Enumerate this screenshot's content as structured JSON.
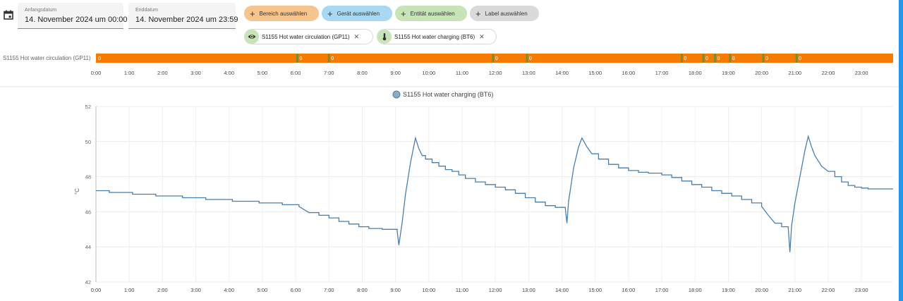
{
  "date_range": {
    "start_label": "Anfangsdatum",
    "start_value": "14. November 2024 um 00:00",
    "end_label": "Enddatum",
    "end_value": "14. November 2024 um 23:59"
  },
  "target_chips": {
    "area": "Bereich auswählen",
    "device": "Gerät auswählen",
    "entity": "Entität auswählen",
    "label": "Label auswählen"
  },
  "selected_entities": {
    "circulation": "S1155 Hot water circulation (GP11)",
    "charging": "S1155 Hot water charging (BT6)"
  },
  "colors": {
    "timeline_state": "#f57c00",
    "timeline_divider": "#7e8b2e",
    "line": "#4a7fad",
    "accent": "#2196f3"
  },
  "timeline": {
    "entity_label": "S1155 Hot water circulation (GP11)",
    "state_value": "0",
    "state_change_hours": [
      6.05,
      7.0,
      11.93,
      12.95,
      17.6,
      18.25,
      18.6,
      19.05,
      20.05,
      21.05
    ]
  },
  "x_ticks": [
    "0:00",
    "1:00",
    "2:00",
    "3:00",
    "4:00",
    "5:00",
    "6:00",
    "7:00",
    "8:00",
    "9:00",
    "10:00",
    "11:00",
    "12:00",
    "13:00",
    "14:00",
    "15:00",
    "16:00",
    "17:00",
    "18:00",
    "19:00",
    "20:00",
    "21:00",
    "22:00",
    "23:00"
  ],
  "chart_data": {
    "type": "line",
    "legend": "S1155 Hot water charging (BT6)",
    "ylabel": "°C",
    "ylim": [
      42,
      52
    ],
    "yticks": [
      "42",
      "44",
      "46",
      "48",
      "50",
      "52"
    ],
    "xlim": [
      0,
      23.95
    ],
    "series": [
      {
        "name": "S1155 Hot water charging (BT6)",
        "x": [
          0,
          0.4,
          1.1,
          1.8,
          2.6,
          3.3,
          4.1,
          4.9,
          5.6,
          6.1,
          6.4,
          6.7,
          7.0,
          7.3,
          7.6,
          7.9,
          8.2,
          8.6,
          9.0,
          9.05,
          9.1,
          9.2,
          9.3,
          9.45,
          9.6,
          9.7,
          9.8,
          9.9,
          10.1,
          10.3,
          10.5,
          10.7,
          10.9,
          11.1,
          11.4,
          11.7,
          12.0,
          12.3,
          12.6,
          12.9,
          13.2,
          13.5,
          13.8,
          14.1,
          14.15,
          14.2,
          14.35,
          14.5,
          14.6,
          14.75,
          14.9,
          15.1,
          15.4,
          15.7,
          16.0,
          16.3,
          16.6,
          17.0,
          17.3,
          17.6,
          17.9,
          18.2,
          18.5,
          18.8,
          19.1,
          19.4,
          19.7,
          20.0,
          20.2,
          20.4,
          20.6,
          20.8,
          20.85,
          20.9,
          21.0,
          21.15,
          21.3,
          21.4,
          21.5,
          21.6,
          21.8,
          22.0,
          22.2,
          22.4,
          22.6,
          22.8,
          23.0,
          23.2,
          23.4,
          23.95
        ],
        "values": [
          47.2,
          47.1,
          47.0,
          46.9,
          46.8,
          46.7,
          46.6,
          46.5,
          46.4,
          46.3,
          45.95,
          45.8,
          45.65,
          45.45,
          45.3,
          45.15,
          45.05,
          45.0,
          45.0,
          44.9,
          44.1,
          45.4,
          47.0,
          48.8,
          50.2,
          49.6,
          49.2,
          49.0,
          48.8,
          48.6,
          48.4,
          48.3,
          48.1,
          47.9,
          47.7,
          47.55,
          47.4,
          47.25,
          47.05,
          46.8,
          46.55,
          46.35,
          46.25,
          46.2,
          45.35,
          46.6,
          48.5,
          49.7,
          50.2,
          49.7,
          49.3,
          49.0,
          48.7,
          48.5,
          48.35,
          48.25,
          48.2,
          48.1,
          47.95,
          47.75,
          47.55,
          47.4,
          47.2,
          47.05,
          46.9,
          46.7,
          46.5,
          46.3,
          45.8,
          45.35,
          45.15,
          45.05,
          43.7,
          45.2,
          46.5,
          48.0,
          49.5,
          50.3,
          49.7,
          49.2,
          48.6,
          48.3,
          48.0,
          47.7,
          47.5,
          47.4,
          47.35,
          47.3,
          47.3,
          47.3
        ]
      }
    ]
  }
}
